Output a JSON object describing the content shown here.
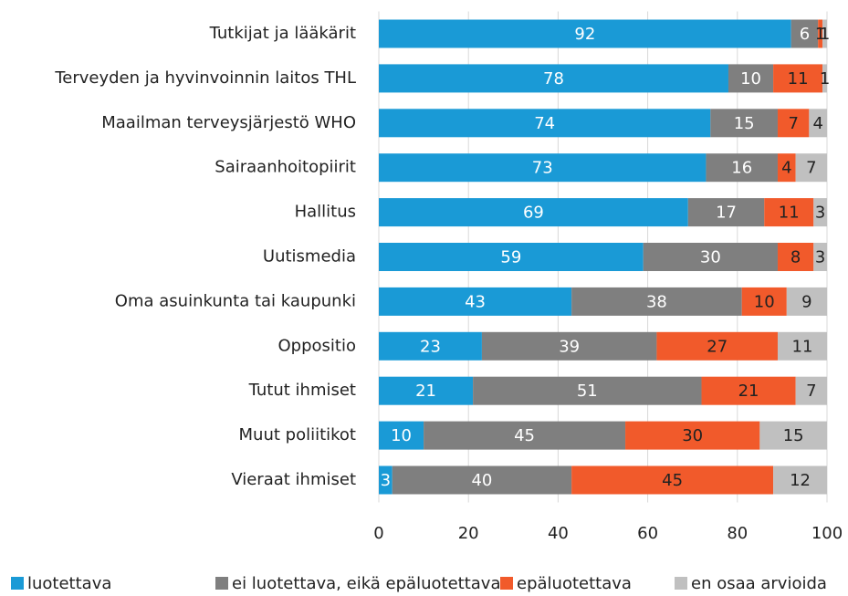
{
  "chart_data": {
    "type": "stacked_barh",
    "categories": [
      "Tutkijat ja lääkärit",
      "Terveyden ja hyvinvoinnin laitos THL",
      "Maailman terveysjärjestö WHO",
      "Sairaanhoitopiirit",
      "Hallitus",
      "Uutismedia",
      "Oma asuinkunta tai kaupunki",
      "Oppositio",
      "Tutut ihmiset",
      "Muut poliitikot",
      "Vieraat ihmiset"
    ],
    "series": [
      {
        "name": "luotettava",
        "color": "#1a9ad6",
        "values": [
          92,
          78,
          74,
          73,
          69,
          59,
          43,
          23,
          21,
          10,
          3
        ]
      },
      {
        "name": "ei luotettava, eikä epäluotettava",
        "color": "#7f7f7f",
        "values": [
          6,
          10,
          15,
          16,
          17,
          30,
          38,
          39,
          51,
          45,
          40
        ]
      },
      {
        "name": "epäluotettava",
        "color": "#f15a2b",
        "values": [
          1,
          11,
          7,
          4,
          11,
          8,
          10,
          27,
          21,
          30,
          45
        ]
      },
      {
        "name": "en osaa arvioida",
        "color": "#c0c0c0",
        "values": [
          1,
          1,
          4,
          7,
          3,
          3,
          9,
          11,
          7,
          15,
          12
        ]
      }
    ],
    "xlim": [
      0,
      100
    ],
    "xticks": [
      0,
      20,
      40,
      60,
      80,
      100
    ],
    "grid": true,
    "legend": "bottom"
  }
}
